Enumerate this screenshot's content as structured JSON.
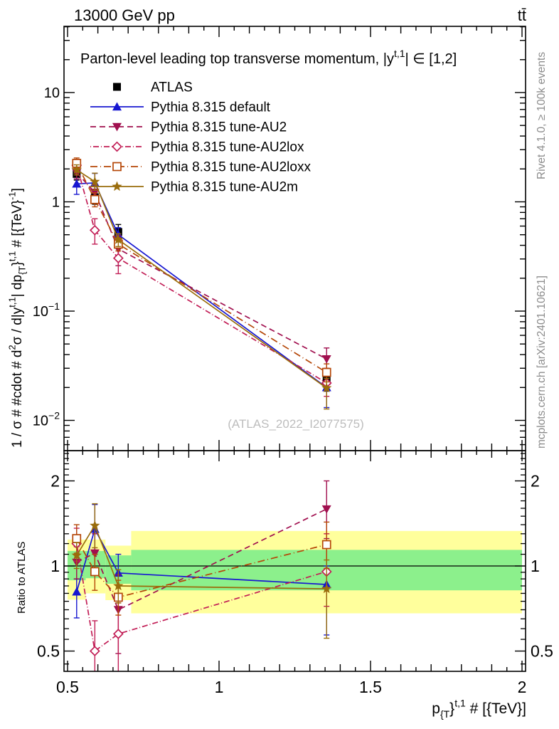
{
  "header": {
    "left": "13000 GeV pp",
    "right": "tt̄"
  },
  "side_notes": {
    "top": "Rivet 4.1.0, ≥ 100k events",
    "bottom": "mcplots.cern.ch [arXiv:2401.10621]"
  },
  "watermark": "(ATLAS_2022_I2077575)",
  "ratio_axis_label": "Ratio to ATLAS",
  "chart_data": {
    "type": "line",
    "title": "Parton-level leading top transverse momentum, |y^{t,1}| ∈ [1,2]",
    "title_parts": [
      {
        "t": "Parton-level leading top transverse momentum, |y"
      },
      {
        "t": "t,1",
        "s": "sup"
      },
      {
        "t": "| ∈ [1,2]"
      }
    ],
    "xlabel": "p_{T}^{t,1} # [{TeV}]",
    "xlabel_parts": [
      {
        "t": "p"
      },
      {
        "t": "{T",
        "s": "sub"
      },
      {
        "t": "}"
      },
      {
        "t": "t,1",
        "s": "sup"
      },
      {
        "t": " # [{TeV}]"
      }
    ],
    "ylabel": "1 / σ # #cdot # d^2σ / d|y^{t,1}| dp_{T}^{t,1} # [{TeV}^-1]",
    "ylabel_parts": [
      {
        "t": "1 / σ # #cdot # d"
      },
      {
        "t": "2",
        "s": "sup"
      },
      {
        "t": "σ / d|y"
      },
      {
        "t": "t,1",
        "s": "sup"
      },
      {
        "t": "| dp"
      },
      {
        "t": "{T",
        "s": "sub"
      },
      {
        "t": "}"
      },
      {
        "t": "t,1",
        "s": "sup"
      },
      {
        "t": " # [{TeV}"
      },
      {
        "t": "-1",
        "s": "sup"
      },
      {
        "t": "]"
      }
    ],
    "x_axis": {
      "scale": "linear",
      "range": [
        0.488,
        2.012
      ],
      "major_ticks": [
        0.5,
        1.0,
        1.5,
        2.0
      ],
      "major_tick_labels": [
        "0.5",
        "1",
        "1.5",
        "2"
      ]
    },
    "main_y_axis": {
      "scale": "log",
      "range": [
        0.0054,
        40
      ],
      "labeled_ticks": [
        {
          "value": 10,
          "label": "10"
        },
        {
          "value": 1,
          "label": "1"
        },
        {
          "value": 0.1,
          "label": "10",
          "exp": "-1"
        },
        {
          "value": 0.01,
          "label": "10",
          "exp": "-2"
        }
      ]
    },
    "ratio_y_axis": {
      "scale": "log",
      "range": [
        0.424,
        2.56
      ],
      "labeled_ticks": [
        {
          "value": 2,
          "label": "2"
        },
        {
          "value": 1,
          "label": "1"
        },
        {
          "value": 0.5,
          "label": "0.5"
        }
      ]
    },
    "x": [
      0.53,
      0.59,
      0.6675,
      1.355
    ],
    "bin_edges": [
      0.5,
      0.56,
      0.625,
      0.71,
      2.0
    ],
    "bands": {
      "yellow_color": "#ffff9c",
      "green_color": "#8cf08c",
      "yellow": [
        [
          0.76,
          1.24
        ],
        [
          0.8,
          1.24
        ],
        [
          0.757,
          1.18
        ],
        [
          0.68,
          1.33
        ]
      ],
      "green": [
        [
          0.89,
          1.13
        ],
        [
          0.905,
          1.13
        ],
        [
          0.865,
          1.09
        ],
        [
          0.82,
          1.14
        ]
      ]
    },
    "series": [
      {
        "name": "ATLAS",
        "label": "ATLAS",
        "color": "#000000",
        "marker": "square-filled",
        "line": "none",
        "main": [
          1.8,
          1.1,
          0.53,
          0.023
        ],
        "main_err": [
          [
            1.58,
            2.05
          ],
          [
            0.95,
            1.27
          ],
          [
            0.45,
            0.62
          ],
          [
            0.0185,
            0.0285
          ]
        ]
      },
      {
        "name": "default",
        "label": "Pythia 8.315 default",
        "color": "#1717d1",
        "marker": "triangle-up-filled",
        "line": "solid",
        "main": [
          1.46,
          1.49,
          0.5,
          0.02
        ],
        "main_err": [
          [
            1.17,
            1.62
          ],
          [
            1.21,
            1.82
          ],
          [
            0.42,
            0.58
          ],
          [
            0.0131,
            0.023
          ]
        ],
        "ratio": [
          0.81,
          1.35,
          0.945,
          0.86
        ],
        "ratio_err": [
          [
            0.655,
            0.9
          ],
          [
            1.1,
            1.65
          ],
          [
            0.8,
            1.1
          ],
          [
            0.57,
            1.0
          ]
        ]
      },
      {
        "name": "tune-AU2",
        "label": "Pythia 8.315 tune-AU2",
        "color": "#a1104f",
        "marker": "triangle-down-filled",
        "line": "dash",
        "main": [
          1.85,
          1.22,
          0.37,
          0.0365
        ],
        "main_err": [
          [
            1.62,
            2.11
          ],
          [
            1.02,
            1.43
          ],
          [
            0.26,
            0.49
          ],
          [
            0.0288,
            0.046
          ]
        ],
        "ratio": [
          1.03,
          1.11,
          0.7,
          1.59
        ],
        "ratio_err": [
          [
            0.9,
            1.17
          ],
          [
            0.93,
            1.3
          ],
          [
            0.49,
            0.93
          ],
          [
            1.25,
            2.0
          ]
        ]
      },
      {
        "name": "tune-AU2lox",
        "label": "Pythia 8.315 tune-AU2lox",
        "color": "#c21e56",
        "marker": "diamond-open",
        "line": "dashdot",
        "main": [
          2.16,
          0.55,
          0.305,
          0.022
        ],
        "main_err": [
          [
            1.87,
            2.45
          ],
          [
            0.41,
            0.7
          ],
          [
            0.22,
            0.39
          ],
          [
            0.0166,
            0.03
          ]
        ],
        "ratio": [
          1.2,
          0.5,
          0.575,
          0.955
        ],
        "ratio_err": [
          [
            1.04,
            1.36
          ],
          [
            0.375,
            0.64
          ],
          [
            0.42,
            0.74
          ],
          [
            0.72,
            1.3
          ]
        ]
      },
      {
        "name": "tune-AU2loxx",
        "label": "Pythia 8.315 tune-AU2loxx",
        "color": "#b54708",
        "marker": "square-open",
        "line": "dashdot2",
        "main": [
          2.25,
          1.05,
          0.41,
          0.0275
        ],
        "main_err": [
          [
            2.0,
            2.52
          ],
          [
            0.9,
            1.21
          ],
          [
            0.355,
            0.47
          ],
          [
            0.0225,
            0.0329
          ]
        ],
        "ratio": [
          1.25,
          0.955,
          0.775,
          1.19
        ],
        "ratio_err": [
          [
            1.11,
            1.4
          ],
          [
            0.82,
            1.1
          ],
          [
            0.67,
            0.89
          ],
          [
            0.98,
            1.43
          ]
        ]
      },
      {
        "name": "tune-AU2m",
        "label": "Pythia 8.315 tune-AU2m",
        "color": "#9a6d0c",
        "marker": "star-filled",
        "line": "solid",
        "main": [
          1.96,
          1.53,
          0.45,
          0.0198
        ],
        "main_err": [
          [
            1.76,
            2.18
          ],
          [
            1.28,
            1.83
          ],
          [
            0.39,
            0.51
          ],
          [
            0.0127,
            0.0242
          ]
        ],
        "ratio": [
          1.09,
          1.39,
          0.85,
          0.83
        ],
        "ratio_err": [
          [
            0.98,
            1.21
          ],
          [
            1.16,
            1.66
          ],
          [
            0.74,
            0.97
          ],
          [
            0.555,
            1.05
          ]
        ]
      }
    ],
    "legend_position": "top-left",
    "grid": false
  }
}
